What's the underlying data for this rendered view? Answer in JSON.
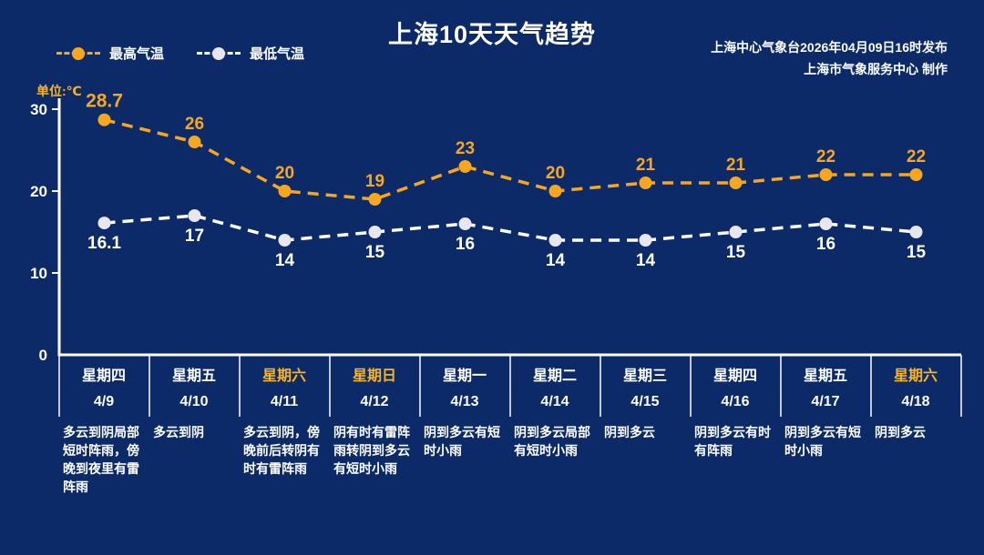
{
  "header": {
    "title": "上海10天天气趋势",
    "source_line1": "上海中心气象台2026年04月09日16时发布",
    "source_line2": "上海市气象服务中心  制作",
    "unit_label": "单位:℃"
  },
  "legend": {
    "max_label": "最高气温",
    "min_label": "最低气温"
  },
  "colors": {
    "background": "#0b2a67",
    "max_line": "#f6a71f",
    "min_line": "#ffffff",
    "min_dot": "#e8e6f0",
    "highlight_gold": "#f9b520",
    "axis": "#ffffff"
  },
  "chart_data": {
    "type": "line",
    "title": "上海10天天气趋势",
    "xlabel": "",
    "ylabel": "单位:℃",
    "ylim": [
      0,
      30
    ],
    "yticks": [
      30,
      20,
      10,
      0
    ],
    "grid": false,
    "legend_position": "top-left",
    "categories": [
      {
        "weekday": "星期四",
        "date": "4/9",
        "weekend": false,
        "forecast": "多云到阴局部短时阵雨，傍晚到夜里有雷阵雨"
      },
      {
        "weekday": "星期五",
        "date": "4/10",
        "weekend": false,
        "forecast": "多云到阴"
      },
      {
        "weekday": "星期六",
        "date": "4/11",
        "weekend": true,
        "forecast": "多云到阴，傍晚前后转阴有时有雷阵雨"
      },
      {
        "weekday": "星期日",
        "date": "4/12",
        "weekend": true,
        "forecast": "阴有时有雷阵雨转阴到多云有短时小雨"
      },
      {
        "weekday": "星期一",
        "date": "4/13",
        "weekend": false,
        "forecast": "阴到多云有短时小雨"
      },
      {
        "weekday": "星期二",
        "date": "4/14",
        "weekend": false,
        "forecast": "阴到多云局部有短时小雨"
      },
      {
        "weekday": "星期三",
        "date": "4/15",
        "weekend": false,
        "forecast": "阴到多云"
      },
      {
        "weekday": "星期四",
        "date": "4/16",
        "weekend": false,
        "forecast": "阴到多云有时有阵雨"
      },
      {
        "weekday": "星期五",
        "date": "4/17",
        "weekend": false,
        "forecast": "阴到多云有短时小雨"
      },
      {
        "weekday": "星期六",
        "date": "4/18",
        "weekend": true,
        "forecast": "阴到多云"
      }
    ],
    "series": [
      {
        "name": "最高气温",
        "color": "#f6a71f",
        "dot_color": "#f6a71f",
        "label_color": "#f6a71f",
        "values": [
          28.7,
          26,
          20,
          19,
          23,
          20,
          21,
          21,
          22,
          22
        ]
      },
      {
        "name": "最低气温",
        "color": "#ffffff",
        "dot_color": "#e8e6f0",
        "label_color": "#ffffff",
        "values": [
          16.1,
          17,
          14,
          15,
          16,
          14,
          14,
          15,
          16,
          15
        ]
      }
    ]
  }
}
